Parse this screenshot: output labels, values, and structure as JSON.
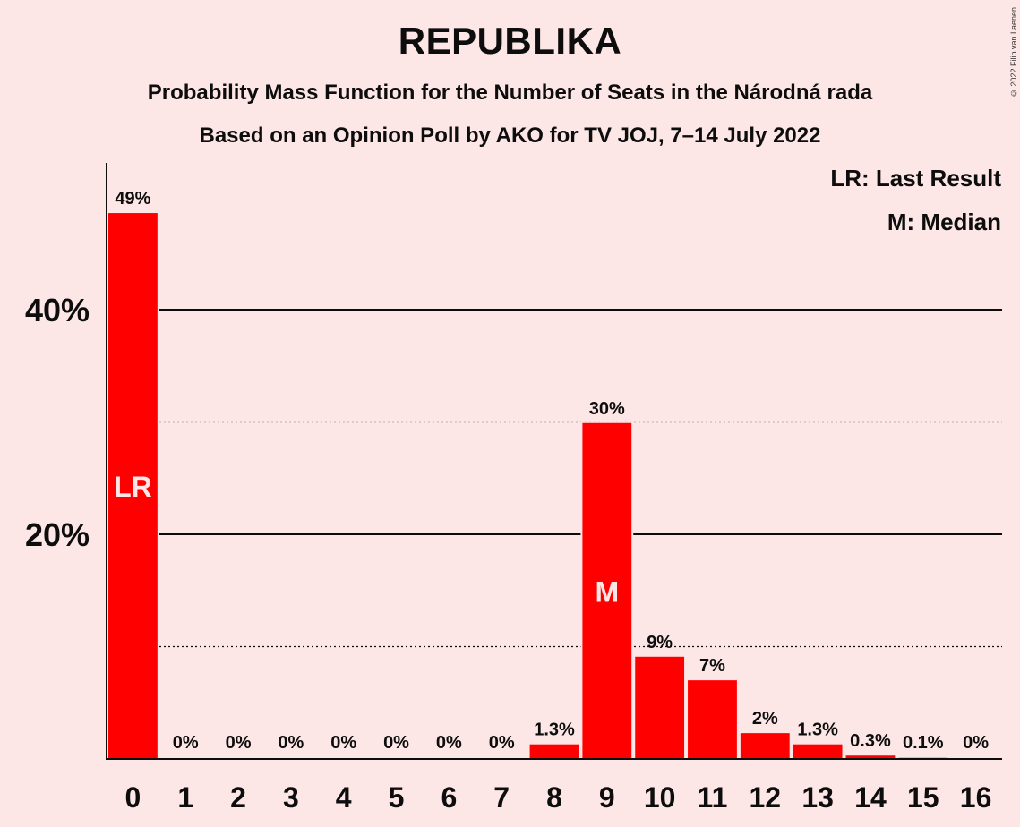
{
  "title": "REPUBLIKA",
  "subtitle1": "Probability Mass Function for the Number of Seats in the Národná rada",
  "subtitle2": "Based on an Opinion Poll by AKO for TV JOJ, 7–14 July 2022",
  "copyright": "© 2022 Filip van Laenen",
  "legend": {
    "lr": "LR: Last Result",
    "m": "M: Median"
  },
  "colors": {
    "bar": "#ff0000",
    "background": "#fde6e6",
    "marker_text": "#fde6e6"
  },
  "chart_data": {
    "type": "bar",
    "categories": [
      "0",
      "1",
      "2",
      "3",
      "4",
      "5",
      "6",
      "7",
      "8",
      "9",
      "10",
      "11",
      "12",
      "13",
      "14",
      "15",
      "16"
    ],
    "values": [
      48.6,
      0,
      0,
      0,
      0,
      0,
      0,
      0,
      1.3,
      29.9,
      9.1,
      7.0,
      2.3,
      1.3,
      0.3,
      0.1,
      0
    ],
    "data_labels": [
      "49%",
      "0%",
      "0%",
      "0%",
      "0%",
      "0%",
      "0%",
      "0%",
      "1.3%",
      "30%",
      "9%",
      "7%",
      "2%",
      "1.3%",
      "0.3%",
      "0.1%",
      "0%"
    ],
    "ylim": [
      0,
      53
    ],
    "y_ticks_major": [
      20,
      40
    ],
    "y_tick_labels": [
      "20%",
      "40%"
    ],
    "y_gridlines_minor": [
      10,
      30
    ],
    "markers": [
      {
        "category": "0",
        "text": "LR"
      },
      {
        "category": "9",
        "text": "M"
      }
    ],
    "legend_position": "top-right"
  }
}
